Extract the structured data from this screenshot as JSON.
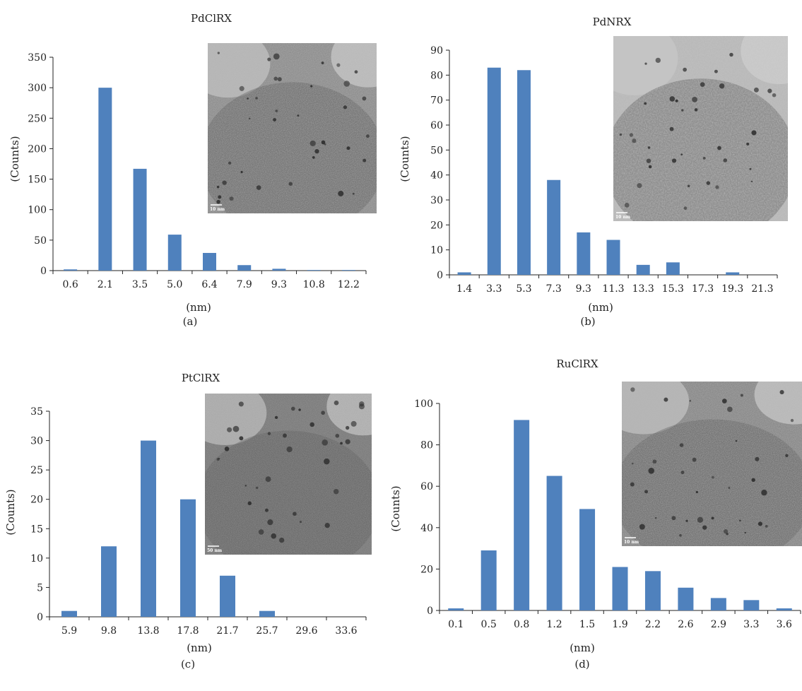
{
  "colors": {
    "bar": "#4f81bd",
    "axis": "#222222",
    "text": "#222222"
  },
  "chart_data": [
    {
      "panel": "(a)",
      "type": "bar",
      "title": "PdClRX",
      "xlabel": "(nm)",
      "ylabel": "(Counts)",
      "ylim": [
        0,
        350
      ],
      "yticks": [
        0,
        50,
        100,
        150,
        200,
        250,
        300,
        350
      ],
      "grid": false,
      "categories": [
        "0.6",
        "2.1",
        "3.5",
        "5.0",
        "6.4",
        "7.9",
        "9.3",
        "10.8",
        "12.2"
      ],
      "values": [
        2,
        300,
        167,
        59,
        29,
        9,
        3,
        1,
        1
      ],
      "inset": {
        "kind": "TEM micrograph",
        "scale_bar": "10 nm",
        "tone": "dark"
      }
    },
    {
      "panel": "(b)",
      "type": "bar",
      "title": "PdNRX",
      "xlabel": "(nm)",
      "ylabel": "(Counts)",
      "ylim": [
        0,
        90
      ],
      "yticks": [
        0,
        10,
        20,
        30,
        40,
        50,
        60,
        70,
        80,
        90
      ],
      "grid": false,
      "categories": [
        "1.4",
        "3.3",
        "5.3",
        "7.3",
        "9.3",
        "11.3",
        "13.3",
        "15.3",
        "17.3",
        "19.3",
        "21.3"
      ],
      "values": [
        1,
        83,
        82,
        38,
        17,
        14,
        4,
        5,
        0,
        1,
        0
      ],
      "inset": {
        "kind": "TEM micrograph",
        "scale_bar": "10 nm",
        "tone": "light"
      }
    },
    {
      "panel": "(c)",
      "type": "bar",
      "title": "PtClRX",
      "xlabel": "(nm)",
      "ylabel": "(Counts)",
      "ylim": [
        0,
        35
      ],
      "yticks": [
        0,
        5,
        10,
        15,
        20,
        25,
        30,
        35
      ],
      "grid": false,
      "categories": [
        "5.9",
        "9.8",
        "13.8",
        "17.8",
        "21.7",
        "25.7",
        "29.6",
        "33.6"
      ],
      "values": [
        1,
        12,
        30,
        20,
        7,
        1,
        0,
        0
      ],
      "inset": {
        "kind": "TEM micrograph",
        "scale_bar": "50 nm",
        "tone": "medium"
      }
    },
    {
      "panel": "(d)",
      "type": "bar",
      "title": "RuClRX",
      "xlabel": "(nm)",
      "ylabel": "(Counts)",
      "ylim": [
        0,
        100
      ],
      "yticks": [
        0,
        20,
        40,
        60,
        80,
        100
      ],
      "grid": false,
      "categories": [
        "0.1",
        "0.5",
        "0.8",
        "1.2",
        "1.5",
        "1.9",
        "2.2",
        "2.6",
        "2.9",
        "3.3",
        "3.6"
      ],
      "values": [
        1,
        29,
        92,
        65,
        49,
        21,
        19,
        11,
        6,
        5,
        1
      ],
      "inset": {
        "kind": "TEM micrograph",
        "scale_bar": "10 nm",
        "tone": "mixed"
      }
    }
  ]
}
